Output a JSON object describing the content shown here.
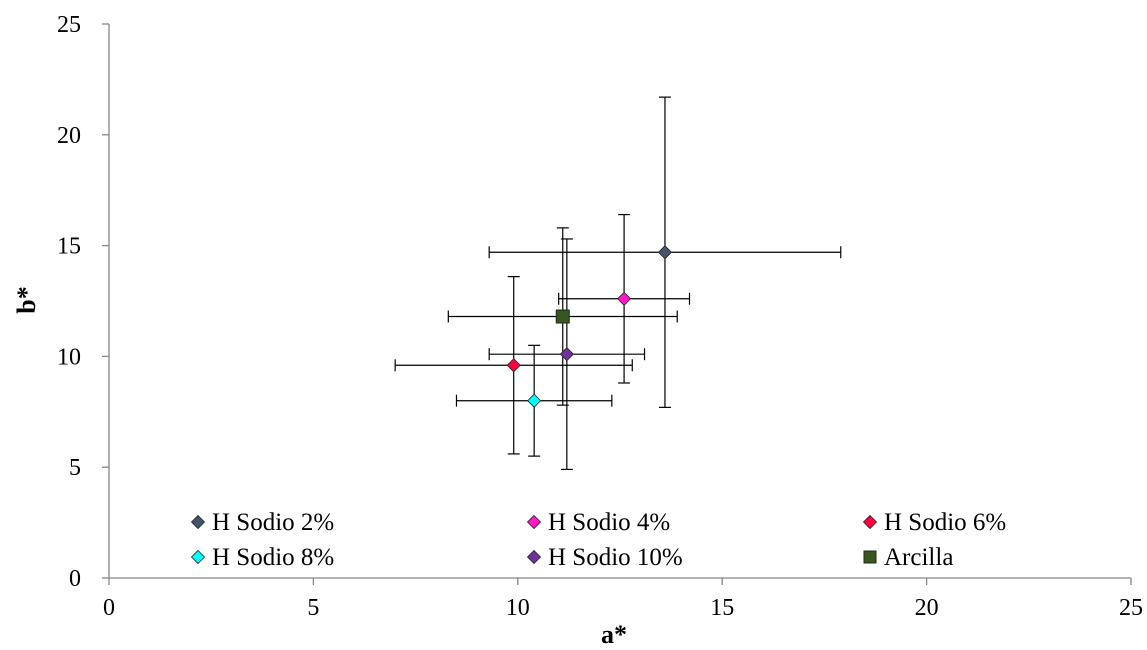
{
  "chart_data": {
    "type": "scatter",
    "title": "",
    "xlabel": "a*",
    "ylabel": "b*",
    "xlim": [
      0,
      25
    ],
    "ylim": [
      0,
      25
    ],
    "xticks": [
      0,
      5,
      10,
      15,
      20,
      25
    ],
    "yticks": [
      0,
      5,
      10,
      15,
      20,
      25
    ],
    "grid": false,
    "legend_position": "bottom-inside",
    "series": [
      {
        "name": "H Sodio 2%",
        "marker": "diamond",
        "color": "#44546A",
        "x": 13.6,
        "y": 14.7,
        "x_err": 4.3,
        "y_err": 7.0
      },
      {
        "name": "H Sodio 4%",
        "marker": "diamond",
        "color": "#FF19C8",
        "x": 12.6,
        "y": 12.6,
        "x_err": 1.6,
        "y_err": 3.8
      },
      {
        "name": "H Sodio 6%",
        "marker": "diamond",
        "color": "#FF0040",
        "x": 9.9,
        "y": 9.6,
        "x_err": 2.9,
        "y_err": 4.0
      },
      {
        "name": "H Sodio 8%",
        "marker": "diamond",
        "color": "#00FFFF",
        "x": 10.4,
        "y": 8.0,
        "x_err": 1.9,
        "y_err": 2.5
      },
      {
        "name": "H Sodio 10%",
        "marker": "diamond",
        "color": "#7030A0",
        "x": 11.2,
        "y": 10.1,
        "x_err": 1.9,
        "y_err": 5.2
      },
      {
        "name": "Arcilla",
        "marker": "square",
        "color": "#375623",
        "x": 11.1,
        "y": 11.8,
        "x_err": 2.8,
        "y_err": 4.0
      }
    ]
  }
}
